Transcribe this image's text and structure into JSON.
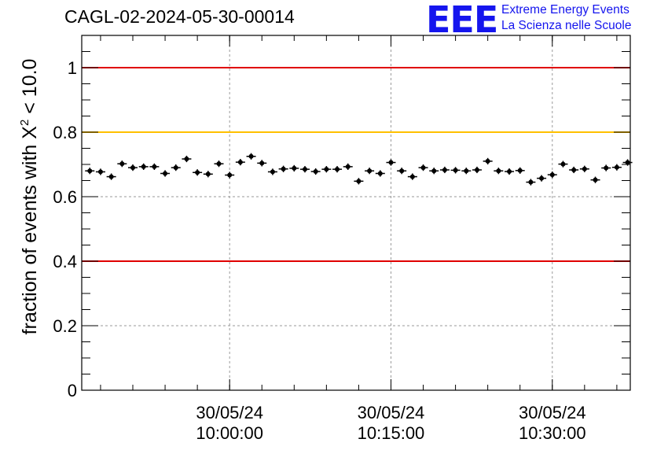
{
  "title": "CAGL-02-2024-05-30-00014",
  "logo": {
    "mark": "EEE",
    "line1": "Extreme Energy Events",
    "line2": "La Scienza nelle Scuole"
  },
  "chart_data": {
    "type": "scatter",
    "title": "CAGL-02-2024-05-30-00014",
    "ylabel_parts": {
      "prefix": "fraction of events with Χ",
      "sup": "2",
      "suffix": " < 10.0"
    },
    "ylim": [
      0,
      1.1
    ],
    "yticks": [
      0,
      0.2,
      0.4,
      0.6,
      0.8,
      1
    ],
    "ytick_labels": [
      "0",
      "0.2",
      "0.4",
      "0.6",
      "0.8",
      "1"
    ],
    "xlim": [
      "09:46:15",
      "10:37:15"
    ],
    "xticks": [
      {
        "date": "30/05/24",
        "time": "10:00:00"
      },
      {
        "date": "30/05/24",
        "time": "10:15:00"
      },
      {
        "date": "30/05/24",
        "time": "10:30:00"
      }
    ],
    "grid": true,
    "reference_lines": [
      {
        "y": 1.0,
        "color": "#e00000"
      },
      {
        "y": 0.8,
        "color": "#ffc000"
      },
      {
        "y": 0.4,
        "color": "#e00000"
      }
    ],
    "marker_color": "#000000",
    "series": [
      {
        "x": [
          "09:47:00",
          "09:48:00",
          "09:49:00",
          "09:50:00",
          "09:51:00",
          "09:52:00",
          "09:53:00",
          "09:54:00",
          "09:55:00",
          "09:56:00",
          "09:57:00",
          "09:58:00",
          "09:59:00",
          "10:00:00",
          "10:01:00",
          "10:02:00",
          "10:03:00",
          "10:04:00",
          "10:05:00",
          "10:06:00",
          "10:07:00",
          "10:08:00",
          "10:09:00",
          "10:10:00",
          "10:11:00",
          "10:12:00",
          "10:13:00",
          "10:14:00",
          "10:15:00",
          "10:16:00",
          "10:17:00",
          "10:18:00",
          "10:19:00",
          "10:20:00",
          "10:21:00",
          "10:22:00",
          "10:23:00",
          "10:24:00",
          "10:25:00",
          "10:26:00",
          "10:27:00",
          "10:28:00",
          "10:29:00",
          "10:30:00",
          "10:31:00",
          "10:32:00",
          "10:33:00",
          "10:34:00",
          "10:35:00",
          "10:36:00",
          "10:37:00"
        ],
        "y": [
          0.68,
          0.677,
          0.662,
          0.702,
          0.69,
          0.693,
          0.693,
          0.672,
          0.69,
          0.717,
          0.675,
          0.67,
          0.702,
          0.667,
          0.707,
          0.725,
          0.704,
          0.677,
          0.686,
          0.688,
          0.685,
          0.678,
          0.685,
          0.685,
          0.693,
          0.648,
          0.68,
          0.672,
          0.706,
          0.68,
          0.662,
          0.69,
          0.68,
          0.683,
          0.682,
          0.68,
          0.683,
          0.71,
          0.68,
          0.678,
          0.681,
          0.645,
          0.657,
          0.668,
          0.701,
          0.683,
          0.686,
          0.652,
          0.689,
          0.691,
          0.706
        ],
        "yerr": 0.01
      }
    ]
  }
}
